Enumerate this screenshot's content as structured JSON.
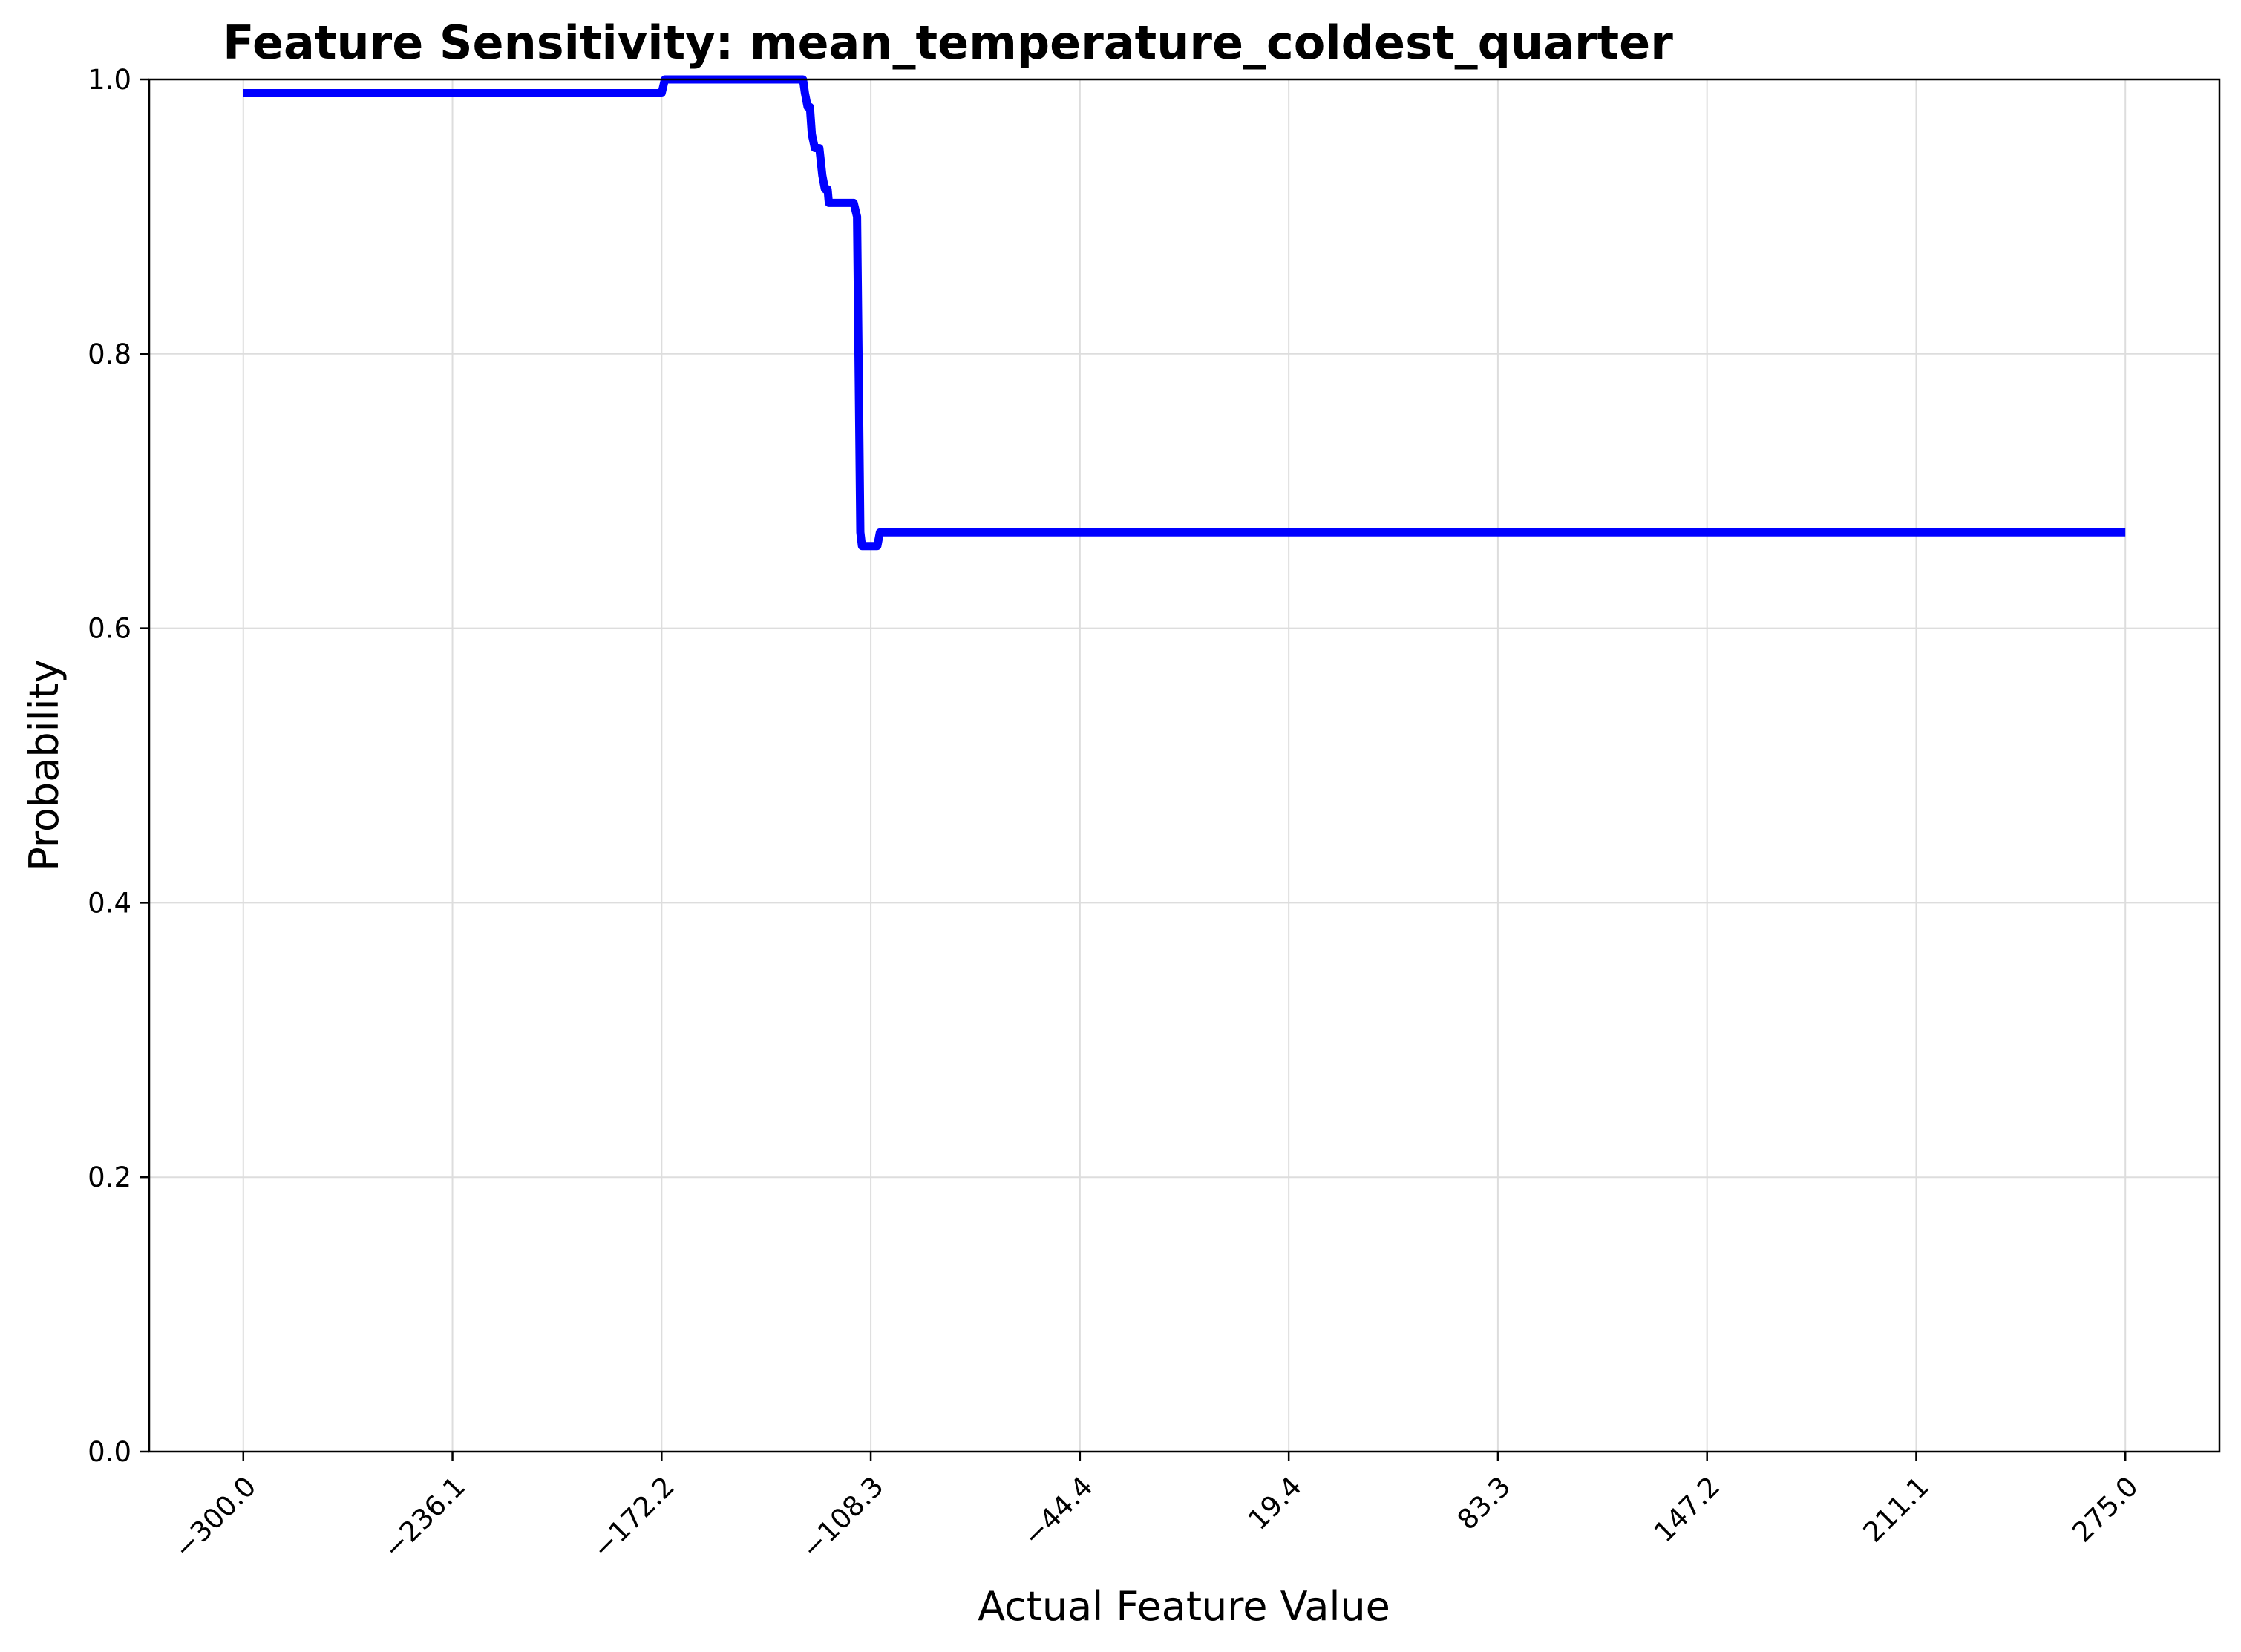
{
  "chart_data": {
    "type": "line",
    "title": "Feature Sensitivity: mean_temperature_coldest_quarter",
    "xlabel": "Actual Feature Value",
    "ylabel": "Probability",
    "xlim": [
      -328.75,
      303.75
    ],
    "ylim": [
      0.0,
      1.0
    ],
    "x_ticks": [
      -300.0,
      -236.1,
      -172.2,
      -108.3,
      -44.4,
      19.4,
      83.3,
      147.2,
      211.1,
      275.0
    ],
    "x_tick_labels": [
      "−300.0",
      "−236.1",
      "−172.2",
      "−108.3",
      "−44.4",
      "19.4",
      "83.3",
      "147.2",
      "211.1",
      "275.0"
    ],
    "y_ticks": [
      0.0,
      0.2,
      0.4,
      0.6,
      0.8,
      1.0
    ],
    "y_tick_labels": [
      "0.0",
      "0.2",
      "0.4",
      "0.6",
      "0.8",
      "1.0"
    ],
    "grid": true,
    "color": "#0000ff",
    "series": [
      {
        "x": [
          -300.0,
          -172.2,
          -171.2,
          -129.0,
          -128.4,
          -127.6,
          -126.9,
          -126.3,
          -125.4,
          -124.0,
          -123.1,
          -122.3,
          -121.5,
          -121.1,
          -120.4,
          -119.6,
          -113.5,
          -112.5,
          -111.5,
          -111.0,
          -110.5,
          -106.3,
          -105.5,
          275.0
        ],
        "y": [
          0.99,
          0.99,
          1.0,
          1.0,
          0.99,
          0.98,
          0.98,
          0.96,
          0.95,
          0.95,
          0.93,
          0.92,
          0.92,
          0.91,
          0.91,
          0.91,
          0.91,
          0.9,
          0.67,
          0.66,
          0.66,
          0.66,
          0.67,
          0.67
        ]
      }
    ]
  }
}
